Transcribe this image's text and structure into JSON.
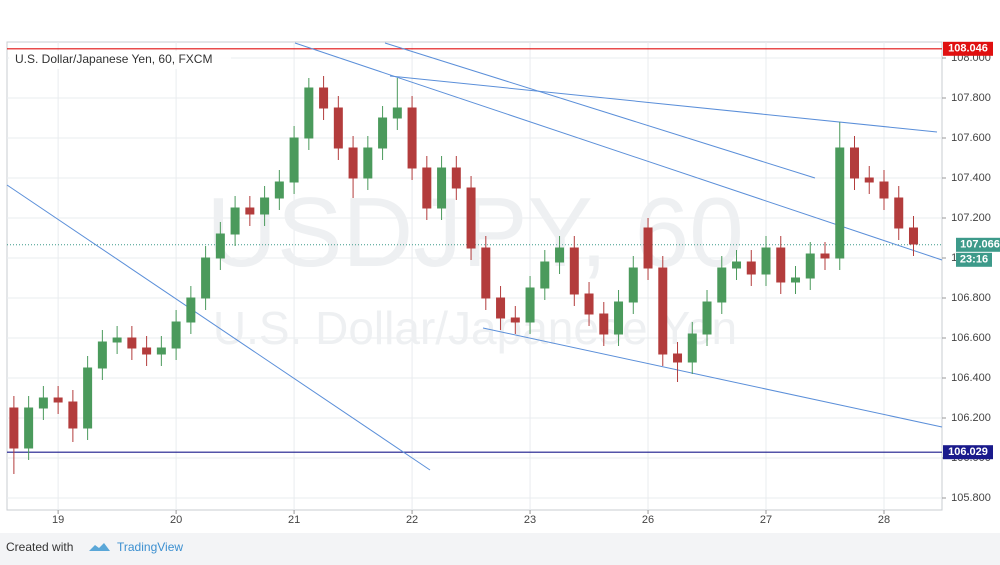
{
  "chart_data": {
    "type": "candlestick",
    "title": "U.S. Dollar/Japanese Yen, 60, FXCM",
    "watermark": "USDJPY, 60",
    "watermark_sub": "U.S. Dollar/Japanese Yen",
    "up_color": "#4b9a5c",
    "down_color": "#b33c3c",
    "grid": true,
    "xlim": [
      -10.4,
      179.8
    ],
    "xticks": [
      {
        "value": 0,
        "label": "19"
      },
      {
        "value": 24,
        "label": "20"
      },
      {
        "value": 48,
        "label": "21"
      },
      {
        "value": 72,
        "label": "22"
      },
      {
        "value": 96,
        "label": "23"
      },
      {
        "value": 120,
        "label": "26"
      },
      {
        "value": 144,
        "label": "27"
      },
      {
        "value": 168,
        "label": "28"
      }
    ],
    "ylim": [
      105.74,
      108.08
    ],
    "yticks": [
      {
        "value": 105.8,
        "label": "105.800"
      },
      {
        "value": 106.0,
        "label": "106.000"
      },
      {
        "value": 106.2,
        "label": "106.200"
      },
      {
        "value": 106.4,
        "label": "106.400"
      },
      {
        "value": 106.6,
        "label": "106.600"
      },
      {
        "value": 106.8,
        "label": "106.800"
      },
      {
        "value": 107.0,
        "label": "107.000"
      },
      {
        "value": 107.2,
        "label": "107.200"
      },
      {
        "value": 107.4,
        "label": "107.400"
      },
      {
        "value": 107.6,
        "label": "107.600"
      },
      {
        "value": 107.8,
        "label": "107.800"
      },
      {
        "value": 108.0,
        "label": "108.000"
      }
    ],
    "x": [
      -9,
      -6,
      -3,
      0,
      3,
      6,
      9,
      12,
      15,
      18,
      21,
      24,
      27,
      30,
      33,
      36,
      39,
      42,
      45,
      48,
      51,
      54,
      57,
      60,
      63,
      66,
      69,
      72,
      75,
      78,
      81,
      84,
      87,
      90,
      93,
      96,
      99,
      102,
      105,
      108,
      111,
      114,
      117,
      120,
      123,
      126,
      129,
      132,
      135,
      138,
      141,
      144,
      147,
      150,
      153,
      156,
      159,
      162,
      165,
      168,
      171,
      174
    ],
    "open": [
      106.25,
      106.05,
      106.25,
      106.3,
      106.28,
      106.15,
      106.45,
      106.58,
      106.6,
      106.55,
      106.52,
      106.55,
      106.68,
      106.8,
      107.0,
      107.12,
      107.25,
      107.22,
      107.3,
      107.38,
      107.6,
      107.85,
      107.75,
      107.55,
      107.4,
      107.55,
      107.7,
      107.75,
      107.45,
      107.25,
      107.45,
      107.35,
      107.05,
      106.8,
      106.7,
      106.68,
      106.85,
      106.98,
      107.05,
      106.82,
      106.72,
      106.62,
      106.78,
      107.15,
      106.95,
      106.52,
      106.48,
      106.62,
      106.78,
      106.95,
      106.98,
      106.92,
      107.05,
      106.88,
      106.9,
      107.02,
      107.0,
      107.55,
      107.4,
      107.38,
      107.3,
      107.15
    ],
    "high": [
      106.31,
      106.31,
      106.36,
      106.36,
      106.34,
      106.51,
      106.64,
      106.66,
      106.66,
      106.61,
      106.61,
      106.74,
      106.86,
      107.06,
      107.18,
      107.31,
      107.31,
      107.36,
      107.44,
      107.66,
      107.9,
      107.91,
      107.81,
      107.61,
      107.61,
      107.76,
      107.9,
      107.81,
      107.51,
      107.51,
      107.51,
      107.41,
      107.11,
      106.86,
      106.76,
      106.91,
      107.04,
      107.11,
      107.11,
      106.88,
      106.78,
      106.84,
      107.01,
      107.2,
      107.01,
      106.58,
      106.68,
      106.84,
      107.01,
      107.04,
      107.04,
      107.11,
      107.11,
      106.96,
      107.08,
      107.08,
      107.68,
      107.61,
      107.46,
      107.44,
      107.36,
      107.21
    ],
    "low": [
      105.92,
      105.99,
      106.19,
      106.22,
      106.08,
      106.09,
      106.39,
      106.52,
      106.49,
      106.46,
      106.46,
      106.49,
      106.62,
      106.74,
      106.94,
      107.06,
      107.16,
      107.16,
      107.24,
      107.32,
      107.54,
      107.69,
      107.49,
      107.3,
      107.34,
      107.49,
      107.64,
      107.39,
      107.19,
      107.19,
      107.29,
      106.99,
      106.74,
      106.64,
      106.62,
      106.62,
      106.79,
      106.92,
      106.76,
      106.66,
      106.56,
      106.56,
      106.72,
      106.89,
      106.46,
      106.38,
      106.42,
      106.56,
      106.72,
      106.89,
      106.86,
      106.86,
      106.82,
      106.82,
      106.84,
      106.94,
      106.94,
      107.34,
      107.32,
      107.24,
      107.09,
      107.01
    ],
    "close": [
      106.05,
      106.25,
      106.3,
      106.28,
      106.15,
      106.45,
      106.58,
      106.6,
      106.55,
      106.52,
      106.55,
      106.68,
      106.8,
      107.0,
      107.12,
      107.25,
      107.22,
      107.3,
      107.38,
      107.6,
      107.85,
      107.75,
      107.55,
      107.4,
      107.55,
      107.7,
      107.75,
      107.45,
      107.25,
      107.45,
      107.35,
      107.05,
      106.8,
      106.7,
      106.68,
      106.85,
      106.98,
      107.05,
      106.82,
      106.72,
      106.62,
      106.78,
      106.95,
      106.95,
      106.52,
      106.48,
      106.62,
      106.78,
      106.95,
      106.98,
      106.92,
      107.05,
      106.88,
      106.9,
      107.02,
      107.0,
      107.55,
      107.4,
      107.38,
      107.3,
      107.15,
      107.07
    ],
    "hlines": [
      {
        "value": 108.046,
        "label": "108.046",
        "color": "#e01010"
      },
      {
        "value": 106.029,
        "label": "106.029",
        "color": "#1a1a8c"
      }
    ],
    "last_price": {
      "value": 107.066,
      "label": "107.066",
      "color": "#3d9a8a"
    },
    "countdown": "23:16",
    "footer": {
      "prefix": "Created with",
      "brand": "TradingView"
    }
  }
}
